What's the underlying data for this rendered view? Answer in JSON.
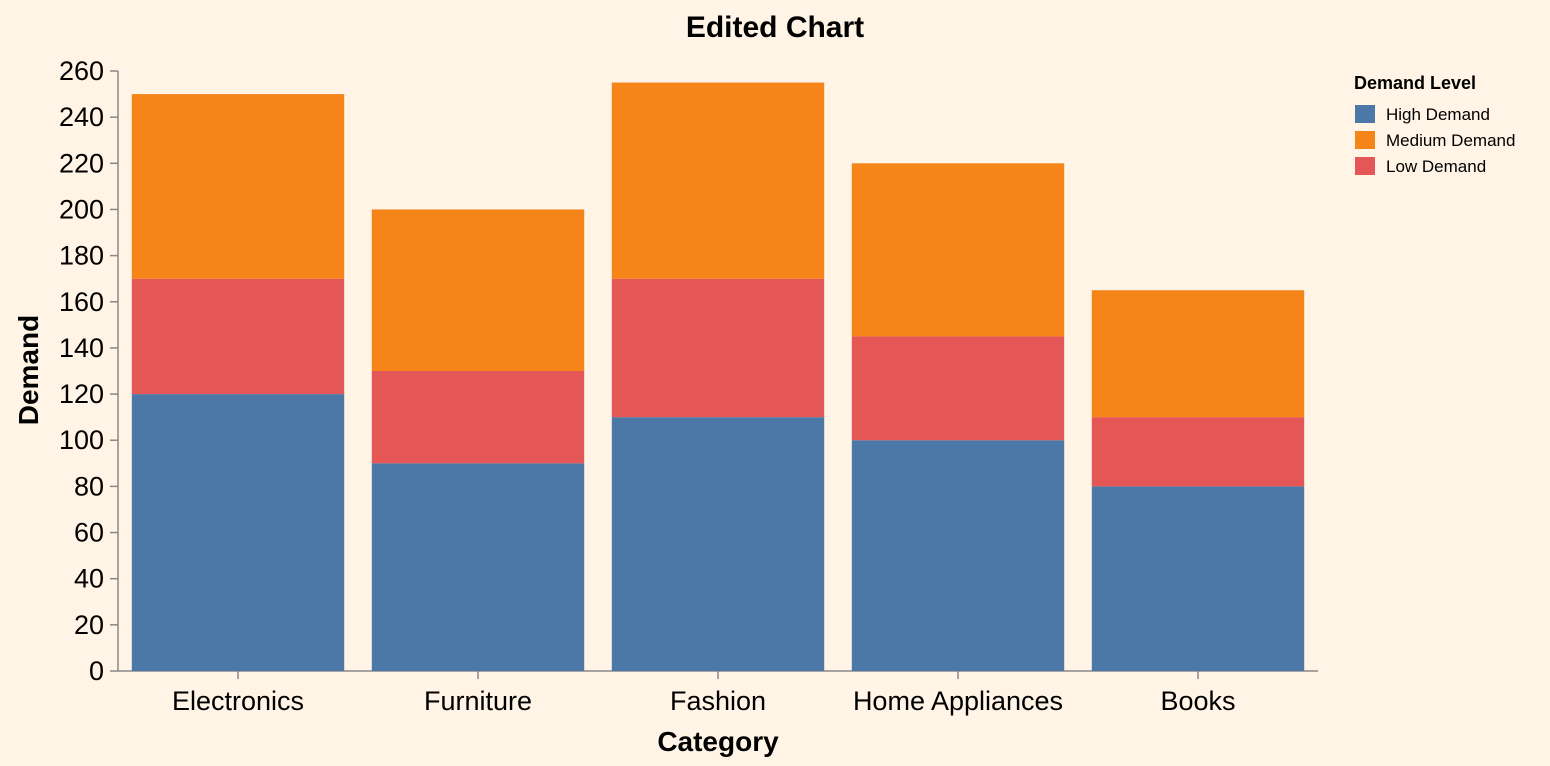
{
  "chart_data": {
    "type": "bar",
    "stacked": true,
    "title": "Edited Chart",
    "xlabel": "Category",
    "ylabel": "Demand",
    "categories": [
      "Electronics",
      "Furniture",
      "Fashion",
      "Home Appliances",
      "Books"
    ],
    "ylim": [
      0,
      260
    ],
    "yticks": [
      0,
      20,
      40,
      60,
      80,
      100,
      120,
      140,
      160,
      180,
      200,
      220,
      240,
      260
    ],
    "grid": false,
    "legend": {
      "title": "Demand Level",
      "placement": "top-right"
    },
    "series": [
      {
        "name": "High Demand",
        "color": "#4c78a8",
        "values": [
          120,
          90,
          110,
          100,
          80
        ]
      },
      {
        "name": "Low Demand",
        "color": "#e45756",
        "values": [
          50,
          40,
          60,
          45,
          30
        ]
      },
      {
        "name": "Medium Demand",
        "color": "#f58518",
        "values": [
          80,
          70,
          85,
          75,
          55
        ]
      }
    ],
    "legend_order": [
      "High Demand",
      "Medium Demand",
      "Low Demand"
    ]
  }
}
